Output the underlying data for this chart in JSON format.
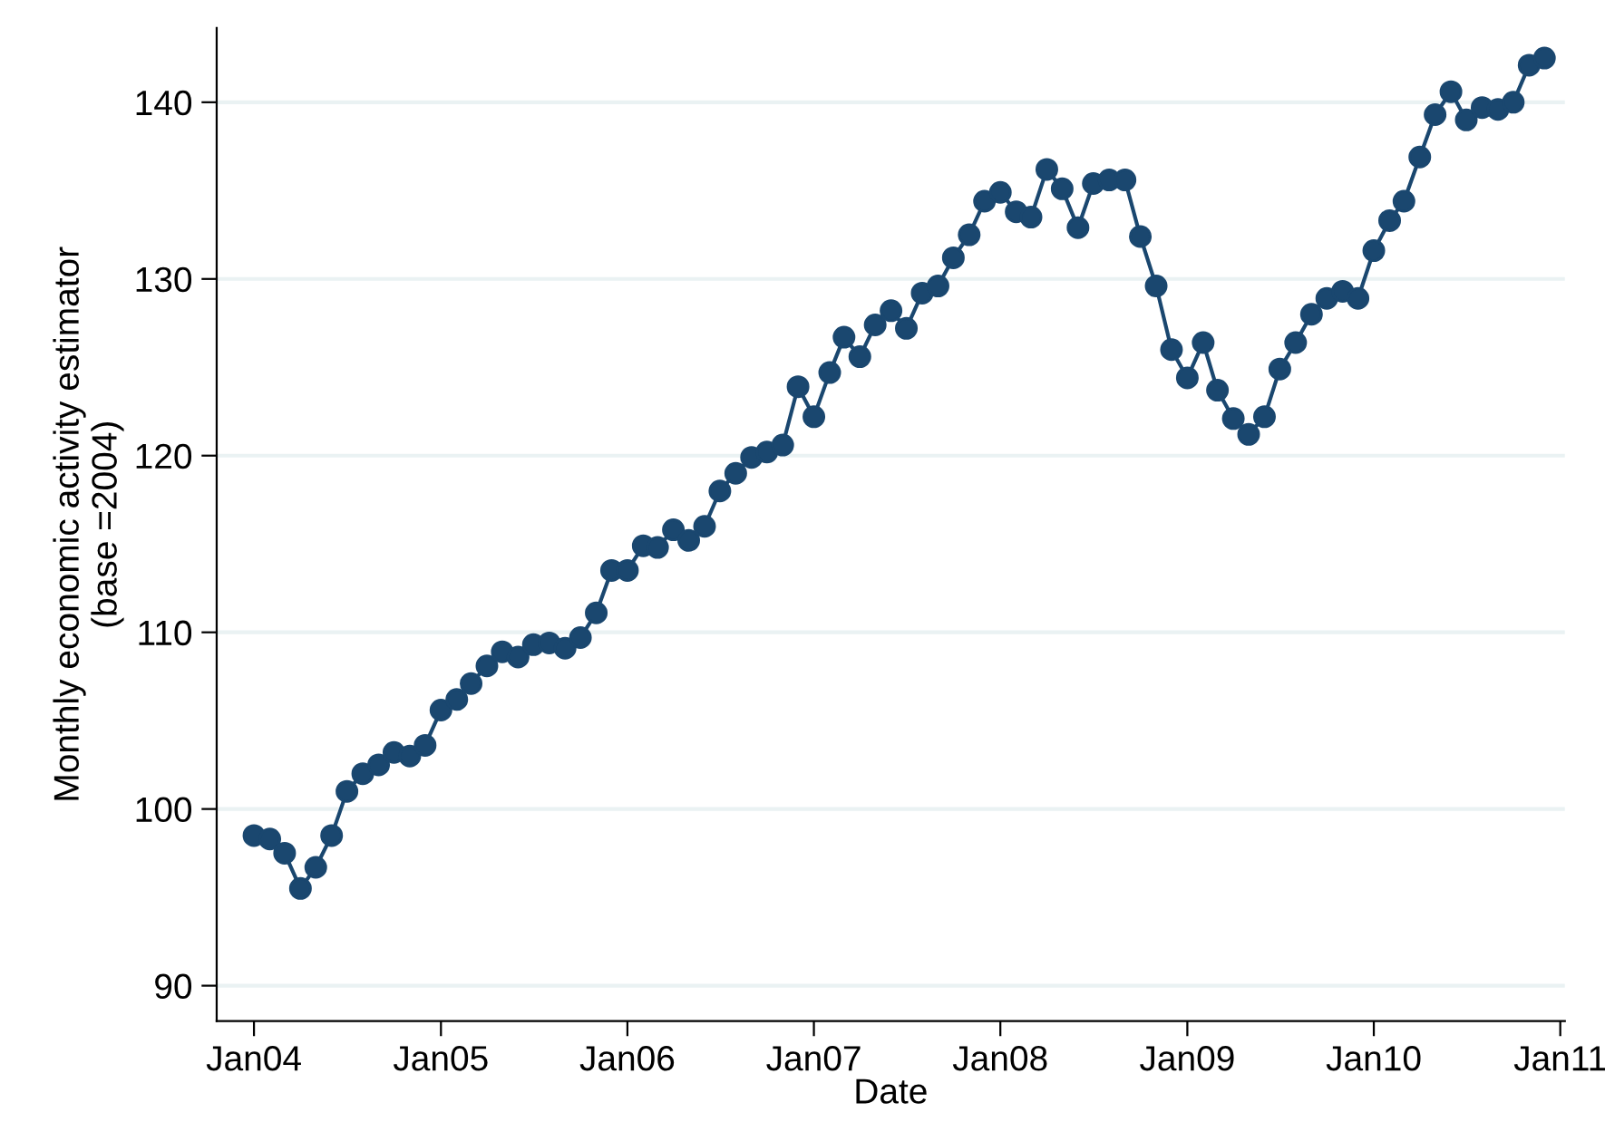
{
  "chart_data": {
    "type": "line",
    "xlabel": "Date",
    "ylabel": "Monthly economic activity estimator\n(base =2004)",
    "x": [
      "2004-01",
      "2004-02",
      "2004-03",
      "2004-04",
      "2004-05",
      "2004-06",
      "2004-07",
      "2004-08",
      "2004-09",
      "2004-10",
      "2004-11",
      "2004-12",
      "2005-01",
      "2005-02",
      "2005-03",
      "2005-04",
      "2005-05",
      "2005-06",
      "2005-07",
      "2005-08",
      "2005-09",
      "2005-10",
      "2005-11",
      "2005-12",
      "2006-01",
      "2006-02",
      "2006-03",
      "2006-04",
      "2006-05",
      "2006-06",
      "2006-07",
      "2006-08",
      "2006-09",
      "2006-10",
      "2006-11",
      "2006-12",
      "2007-01",
      "2007-02",
      "2007-03",
      "2007-04",
      "2007-05",
      "2007-06",
      "2007-07",
      "2007-08",
      "2007-09",
      "2007-10",
      "2007-11",
      "2007-12",
      "2008-01",
      "2008-02",
      "2008-03",
      "2008-04",
      "2008-05",
      "2008-06",
      "2008-07",
      "2008-08",
      "2008-09",
      "2008-10",
      "2008-11",
      "2008-12",
      "2009-01",
      "2009-02",
      "2009-03",
      "2009-04",
      "2009-05",
      "2009-06",
      "2009-07",
      "2009-08",
      "2009-09",
      "2009-10",
      "2009-11",
      "2009-12",
      "2010-01",
      "2010-02",
      "2010-03",
      "2010-04",
      "2010-05",
      "2010-06",
      "2010-07",
      "2010-08",
      "2010-09",
      "2010-10",
      "2010-11",
      "2010-12"
    ],
    "series": [
      {
        "color": "#1a476f",
        "values": [
          98.5,
          98.3,
          97.5,
          95.5,
          96.7,
          98.5,
          101.0,
          102.0,
          102.5,
          103.2,
          103.0,
          103.6,
          105.6,
          106.2,
          107.1,
          108.1,
          108.9,
          108.6,
          109.3,
          109.4,
          109.1,
          109.7,
          111.1,
          113.5,
          113.5,
          114.9,
          114.8,
          115.8,
          115.2,
          116.0,
          118.0,
          119.0,
          119.9,
          120.2,
          120.6,
          123.9,
          122.2,
          124.7,
          126.7,
          125.6,
          127.4,
          128.2,
          127.2,
          129.2,
          129.6,
          131.2,
          132.5,
          134.4,
          134.9,
          133.8,
          133.5,
          136.2,
          135.1,
          132.9,
          135.4,
          135.6,
          135.6,
          132.4,
          129.6,
          126.0,
          124.4,
          126.4,
          123.7,
          122.1,
          121.2,
          122.2,
          124.9,
          126.4,
          128.0,
          128.9,
          129.3,
          128.9,
          131.6,
          133.3,
          134.4,
          136.9,
          139.3,
          140.6,
          139.0,
          139.7,
          139.6,
          140.0,
          142.1,
          142.5
        ]
      }
    ],
    "xlim": [
      "2003-10-20",
      "2011-01-10"
    ],
    "xticks": [
      {
        "value": "2004-01",
        "label": "Jan04"
      },
      {
        "value": "2005-01",
        "label": "Jan05"
      },
      {
        "value": "2006-01",
        "label": "Jan06"
      },
      {
        "value": "2007-01",
        "label": "Jan07"
      },
      {
        "value": "2008-01",
        "label": "Jan08"
      },
      {
        "value": "2009-01",
        "label": "Jan09"
      },
      {
        "value": "2010-01",
        "label": "Jan10"
      },
      {
        "value": "2011-01",
        "label": "Jan11"
      }
    ],
    "ylim": [
      88,
      144.2
    ],
    "yticks": [
      90,
      100,
      110,
      120,
      130,
      140
    ],
    "grid": "y",
    "marker": "circle",
    "line_style": "solid"
  }
}
